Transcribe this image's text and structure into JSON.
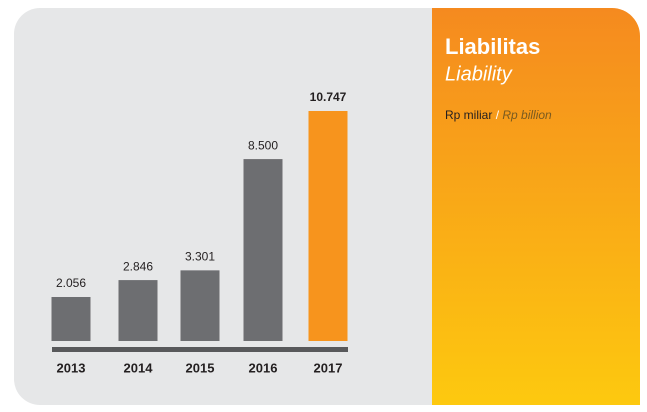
{
  "chart_data": {
    "type": "bar",
    "title": "Liabilitas",
    "subtitle": "Liability",
    "unit": "Rp miliar",
    "unit_separator": "/",
    "unit_en": "Rp billion",
    "categories": [
      "2013",
      "2014",
      "2015",
      "2016",
      "2017"
    ],
    "values": [
      2056,
      2846,
      3301,
      8500,
      10747
    ],
    "value_labels": [
      "2.056",
      "2.846",
      "3.301",
      "8.500",
      "10.747"
    ],
    "colors": [
      "#6d6e71",
      "#6d6e71",
      "#6d6e71",
      "#6d6e71",
      "#f7941d"
    ]
  }
}
